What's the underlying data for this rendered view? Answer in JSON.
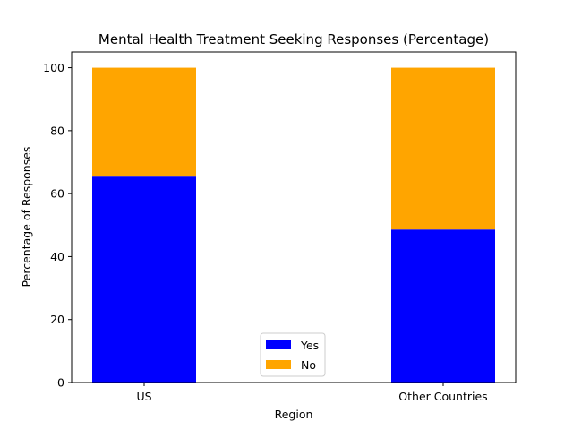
{
  "chart_data": {
    "type": "bar",
    "stacked": true,
    "title": "Mental Health Treatment Seeking Responses (Percentage)",
    "xlabel": "Region",
    "ylabel": "Percentage of Responses",
    "categories": [
      "US",
      "Other Countries"
    ],
    "series": [
      {
        "name": "Yes",
        "color": "#0000ff",
        "values": [
          65.4,
          48.6
        ]
      },
      {
        "name": "No",
        "color": "#ffa500",
        "values": [
          34.6,
          51.4
        ]
      }
    ],
    "ylim": [
      0,
      105
    ],
    "yticks": [
      0,
      20,
      40,
      60,
      80,
      100
    ],
    "grid": false,
    "legend_position": "lower center"
  }
}
